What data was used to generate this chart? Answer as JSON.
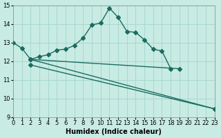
{
  "xlabel": "Humidex (Indice chaleur)",
  "bg_color": "#c8ebe3",
  "grid_color": "#a8d8d0",
  "line_color": "#1a6b60",
  "ylim": [
    9,
    15
  ],
  "xlim": [
    0,
    23
  ],
  "yticks": [
    9,
    10,
    11,
    12,
    13,
    14,
    15
  ],
  "xticks": [
    0,
    1,
    2,
    3,
    4,
    5,
    6,
    7,
    8,
    9,
    10,
    11,
    12,
    13,
    14,
    15,
    16,
    17,
    18,
    19,
    20,
    21,
    22,
    23
  ],
  "line1_x": [
    0,
    1,
    2,
    3,
    4,
    5,
    6,
    7,
    8,
    9,
    10,
    11,
    12,
    13,
    14,
    15,
    16,
    17,
    18
  ],
  "line1_y": [
    13.0,
    12.7,
    12.1,
    12.25,
    12.35,
    12.6,
    12.65,
    12.85,
    13.25,
    13.95,
    14.05,
    14.85,
    14.35,
    13.6,
    13.55,
    13.15,
    12.65,
    12.55,
    11.6
  ],
  "line2_x": [
    2,
    19
  ],
  "line2_y": [
    12.1,
    11.6
  ],
  "line3_x": [
    2,
    23
  ],
  "line3_y": [
    11.8,
    9.45
  ],
  "line4_x": [
    2,
    23
  ],
  "line4_y": [
    12.1,
    9.45
  ],
  "marker": "D",
  "markersize": 3,
  "linewidth": 1.0
}
